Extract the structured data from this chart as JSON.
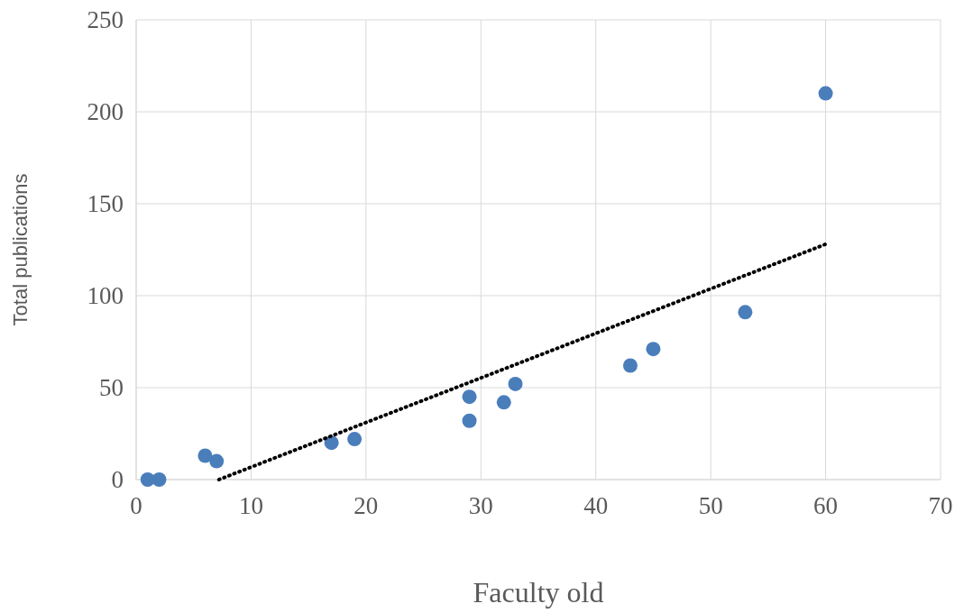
{
  "chart_data": {
    "type": "scatter",
    "xlabel": "Faculty old",
    "ylabel": "Total publications",
    "xlim": [
      0,
      70
    ],
    "xticks": [
      0,
      10,
      20,
      30,
      40,
      50,
      60,
      70
    ],
    "ylim": [
      0,
      250
    ],
    "yticks": [
      0,
      50,
      100,
      150,
      200,
      250
    ],
    "grid": true,
    "marker": "circle",
    "series": [
      {
        "color": "#4a7ebb",
        "x": [
          1,
          2,
          6,
          7,
          17,
          19,
          29,
          29,
          32,
          33,
          43,
          45,
          53,
          60
        ],
        "values": [
          0,
          0,
          13,
          10,
          20,
          22,
          45,
          32,
          42,
          52,
          62,
          71,
          91,
          210
        ]
      },
      {
        "type": "line",
        "color": "#000000",
        "line_style": "dotted",
        "marker": "none",
        "x": [
          7.2,
          60
        ],
        "values": [
          0,
          128
        ]
      }
    ]
  }
}
